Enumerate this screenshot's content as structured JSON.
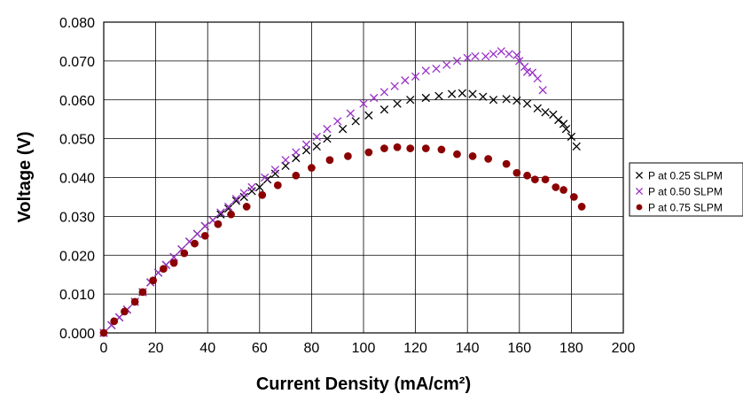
{
  "chart_data": {
    "type": "scatter",
    "title": "",
    "xlabel": "Current Density (mA/cm²)",
    "ylabel": "Voltage (V)",
    "xlim": [
      0,
      200
    ],
    "ylim": [
      0,
      0.08
    ],
    "x_ticks": [
      "0",
      "20",
      "40",
      "60",
      "80",
      "100",
      "120",
      "140",
      "160",
      "180",
      "200"
    ],
    "y_ticks": [
      "0.000",
      "0.010",
      "0.020",
      "0.030",
      "0.040",
      "0.050",
      "0.060",
      "0.070",
      "0.080"
    ],
    "grid": true,
    "legend_position": "right",
    "series": [
      {
        "name": "P at 0.25 SLPM",
        "marker": "x",
        "color": "#000000",
        "points": [
          [
            0,
            0.0
          ],
          [
            3,
            0.002
          ],
          [
            6,
            0.004
          ],
          [
            9,
            0.006
          ],
          [
            12,
            0.008
          ],
          [
            15,
            0.0105
          ],
          [
            18,
            0.013
          ],
          [
            21,
            0.0155
          ],
          [
            24,
            0.0175
          ],
          [
            27,
            0.0195
          ],
          [
            30,
            0.0215
          ],
          [
            33,
            0.0235
          ],
          [
            36,
            0.0255
          ],
          [
            39,
            0.0275
          ],
          [
            42,
            0.029
          ],
          [
            45,
            0.0305
          ],
          [
            48,
            0.032
          ],
          [
            51,
            0.034
          ],
          [
            54,
            0.035
          ],
          [
            57,
            0.0365
          ],
          [
            60,
            0.0375
          ],
          [
            63,
            0.0395
          ],
          [
            66,
            0.041
          ],
          [
            70,
            0.043
          ],
          [
            74,
            0.045
          ],
          [
            78,
            0.047
          ],
          [
            82,
            0.048
          ],
          [
            86,
            0.05
          ],
          [
            92,
            0.0525
          ],
          [
            97,
            0.0545
          ],
          [
            102,
            0.056
          ],
          [
            108,
            0.0575
          ],
          [
            113,
            0.059
          ],
          [
            118,
            0.06
          ],
          [
            124,
            0.0605
          ],
          [
            129,
            0.061
          ],
          [
            134,
            0.0615
          ],
          [
            138,
            0.0617
          ],
          [
            142,
            0.0615
          ],
          [
            146,
            0.0608
          ],
          [
            150,
            0.06
          ],
          [
            155,
            0.0602
          ],
          [
            159,
            0.0598
          ],
          [
            163,
            0.059
          ],
          [
            167,
            0.0578
          ],
          [
            170,
            0.0568
          ],
          [
            173,
            0.0562
          ],
          [
            175,
            0.0548
          ],
          [
            177,
            0.0538
          ],
          [
            178,
            0.0525
          ],
          [
            180,
            0.0505
          ],
          [
            182,
            0.048
          ]
        ]
      },
      {
        "name": "P at 0.50 SLPM",
        "marker": "x",
        "color": "#9b30c8",
        "points": [
          [
            0,
            0.0
          ],
          [
            3,
            0.002
          ],
          [
            6,
            0.004
          ],
          [
            9,
            0.006
          ],
          [
            12,
            0.008
          ],
          [
            15,
            0.0105
          ],
          [
            18,
            0.013
          ],
          [
            21,
            0.0155
          ],
          [
            24,
            0.0175
          ],
          [
            27,
            0.0195
          ],
          [
            30,
            0.0215
          ],
          [
            33,
            0.0235
          ],
          [
            36,
            0.0255
          ],
          [
            39,
            0.0275
          ],
          [
            42,
            0.029
          ],
          [
            45,
            0.031
          ],
          [
            48,
            0.0325
          ],
          [
            51,
            0.0345
          ],
          [
            54,
            0.036
          ],
          [
            57,
            0.0375
          ],
          [
            62,
            0.04
          ],
          [
            66,
            0.042
          ],
          [
            70,
            0.0445
          ],
          [
            74,
            0.0465
          ],
          [
            78,
            0.0485
          ],
          [
            82,
            0.0505
          ],
          [
            86,
            0.0525
          ],
          [
            90,
            0.0545
          ],
          [
            95,
            0.0565
          ],
          [
            100,
            0.059
          ],
          [
            104,
            0.0605
          ],
          [
            108,
            0.062
          ],
          [
            112,
            0.0635
          ],
          [
            116,
            0.065
          ],
          [
            120,
            0.066
          ],
          [
            124,
            0.0675
          ],
          [
            128,
            0.068
          ],
          [
            132,
            0.069
          ],
          [
            136,
            0.07
          ],
          [
            140,
            0.0708
          ],
          [
            143,
            0.0712
          ],
          [
            147,
            0.0712
          ],
          [
            150,
            0.0718
          ],
          [
            153,
            0.0725
          ],
          [
            156,
            0.0718
          ],
          [
            159,
            0.0715
          ],
          [
            160,
            0.07
          ],
          [
            162,
            0.0685
          ],
          [
            163,
            0.0672
          ],
          [
            165,
            0.067
          ],
          [
            167,
            0.0655
          ],
          [
            169,
            0.0625
          ]
        ]
      },
      {
        "name": "P at 0.75 SLPM",
        "marker": "circle",
        "color": "#8b0000",
        "points": [
          [
            0,
            0.0
          ],
          [
            4,
            0.003
          ],
          [
            8,
            0.0055
          ],
          [
            12,
            0.008
          ],
          [
            15,
            0.0105
          ],
          [
            19,
            0.0135
          ],
          [
            23,
            0.0165
          ],
          [
            27,
            0.018
          ],
          [
            31,
            0.0205
          ],
          [
            35,
            0.023
          ],
          [
            39,
            0.025
          ],
          [
            44,
            0.028
          ],
          [
            49,
            0.0305
          ],
          [
            55,
            0.0325
          ],
          [
            61,
            0.0355
          ],
          [
            67,
            0.038
          ],
          [
            74,
            0.0405
          ],
          [
            80,
            0.0425
          ],
          [
            87,
            0.0445
          ],
          [
            94,
            0.0455
          ],
          [
            102,
            0.0465
          ],
          [
            108,
            0.0475
          ],
          [
            113,
            0.0478
          ],
          [
            118,
            0.0475
          ],
          [
            124,
            0.0475
          ],
          [
            130,
            0.0472
          ],
          [
            136,
            0.046
          ],
          [
            142,
            0.0455
          ],
          [
            148,
            0.0448
          ],
          [
            155,
            0.0435
          ],
          [
            159,
            0.0412
          ],
          [
            163,
            0.0405
          ],
          [
            166,
            0.0395
          ],
          [
            170,
            0.0395
          ],
          [
            174,
            0.0375
          ],
          [
            177,
            0.0368
          ],
          [
            181,
            0.035
          ],
          [
            184,
            0.0325
          ]
        ]
      }
    ]
  }
}
